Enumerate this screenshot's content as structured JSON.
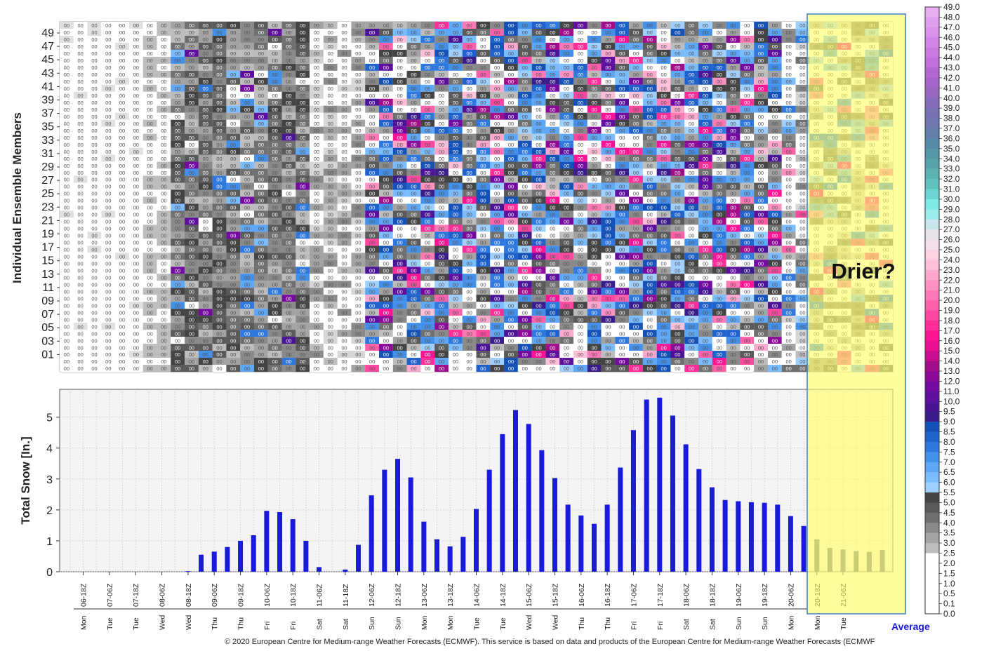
{
  "chart_data": [
    {
      "type": "heatmap",
      "ylabel": "Individual Ensemble Members",
      "y_tick_labels": [
        "49",
        "47",
        "45",
        "43",
        "41",
        "39",
        "37",
        "35",
        "33",
        "31",
        "29",
        "27",
        "25",
        "23",
        "21",
        "19",
        "17",
        "15",
        "13",
        "11",
        "09",
        "07",
        "05",
        "03",
        "01"
      ],
      "members": 50,
      "periods": 60,
      "cell_value_text": "00",
      "annotation": "Drier?"
    },
    {
      "type": "bar",
      "ylabel": "Total Snow [In.]",
      "ylim": [
        0,
        5.9
      ],
      "y_ticks": [
        "0",
        "1",
        "2",
        "3",
        "4",
        "5"
      ],
      "grid": true,
      "x_tick_labels": [
        "06-18Z",
        "07-06Z",
        "07-18Z",
        "08-06Z",
        "08-18Z",
        "09-06Z",
        "09-18Z",
        "10-06Z",
        "10-18Z",
        "11-06Z",
        "11-18Z",
        "12-06Z",
        "12-18Z",
        "13-06Z",
        "13-18Z",
        "14-06Z",
        "14-18Z",
        "15-06Z",
        "15-18Z",
        "16-06Z",
        "16-18Z",
        "17-06Z",
        "17-18Z",
        "18-06Z",
        "18-18Z",
        "19-06Z",
        "19-18Z",
        "20-06Z",
        "20-18Z",
        "21-06Z"
      ],
      "x_day_labels": [
        "Mon",
        "Tue",
        "Tue",
        "Wed",
        "Wed",
        "Thu",
        "Thu",
        "Fri",
        "Fri",
        "Sat",
        "Sat",
        "Sun",
        "Sun",
        "Mon",
        "Mon",
        "Tue",
        "Tue",
        "Wed",
        "Wed",
        "Thu",
        "Thu",
        "Fri",
        "Fri",
        "Sat",
        "Sat",
        "Sun",
        "Sun",
        "Mon",
        "Mon",
        "Tue"
      ],
      "values": [
        0,
        0,
        0,
        0,
        0,
        0,
        0,
        0,
        0,
        0.02,
        0.55,
        0.65,
        0.8,
        1.0,
        1.18,
        1.97,
        1.93,
        1.7,
        1.0,
        0.15,
        0,
        0.07,
        0.87,
        2.47,
        3.3,
        3.65,
        3.05,
        1.62,
        1.05,
        0.82,
        1.13,
        2.03,
        3.3,
        4.45,
        5.23,
        4.78,
        3.93,
        3.03,
        2.17,
        1.82,
        1.55,
        2.17,
        3.37,
        4.58,
        5.57,
        5.63,
        5.05,
        4.12,
        3.32,
        2.73,
        2.32,
        2.28,
        2.25,
        2.23,
        2.17,
        1.8,
        1.48,
        1.05,
        0.77,
        0.72,
        0.67,
        0.64,
        0.7
      ],
      "colors": {
        "bar": "#1a1adf",
        "average_bar": "#7a7a93",
        "average_label": "#1a1adf"
      },
      "average_label": "Average"
    }
  ],
  "colorbar": {
    "labels": [
      "49.0",
      "48.0",
      "47.0",
      "46.0",
      "45.0",
      "44.0",
      "43.0",
      "42.0",
      "41.0",
      "40.0",
      "39.0",
      "38.0",
      "37.0",
      "36.0",
      "35.0",
      "34.0",
      "33.0",
      "32.0",
      "31.0",
      "30.0",
      "29.0",
      "28.0",
      "27.0",
      "26.0",
      "25.0",
      "24.0",
      "23.0",
      "22.0",
      "21.0",
      "20.0",
      "19.0",
      "18.0",
      "17.0",
      "16.0",
      "15.0",
      "14.0",
      "13.0",
      "12.0",
      "11.0",
      "10.0",
      "9.5",
      "9.0",
      "8.5",
      "8.0",
      "7.5",
      "7.0",
      "6.5",
      "6.0",
      "5.5",
      "5.0",
      "4.5",
      "4.0",
      "3.5",
      "3.0",
      "2.5",
      "2.0",
      "1.5",
      "1.0",
      "0.5",
      "0.1",
      "0.0"
    ]
  },
  "footer": {
    "copyright": "© 2020 European Centre for Medium-range Weather Forecasts (ECMWF). This service is based on data and products of the European Centre for Medium-range Weather Forecasts (ECMWF"
  },
  "highlight": {
    "color": "#ffff66",
    "border": "#3a7fc0"
  }
}
